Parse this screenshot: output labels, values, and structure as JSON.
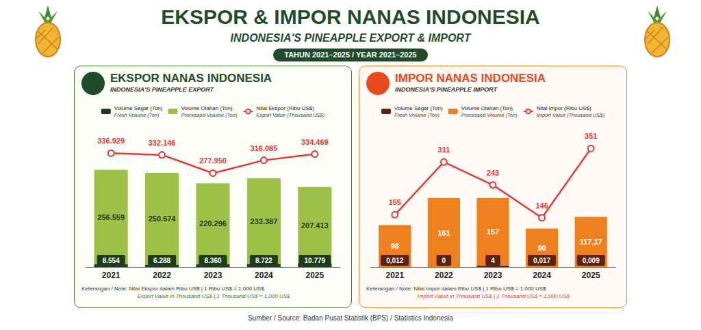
{
  "header": {
    "title": "EKSPOR & IMPOR NANAS INDONESIA",
    "subtitle": "INDONESIA'S PINEAPPLE EXPORT & IMPORT",
    "period": "TAHUN 2021–2025 / YEAR 2021–2025",
    "source": "Sumber / Source: Badan Pusat Statistik (BPS) / Statistics Indonesia"
  },
  "chart_data": [
    {
      "type": "bar",
      "title": "EKSPOR NANAS INDONESIA",
      "subtitle": "INDONESIA'S PINEAPPLE EXPORT",
      "categories": [
        "2021",
        "2022",
        "2023",
        "2024",
        "2025"
      ],
      "series": [
        {
          "name": "Volume Segar (Ton)",
          "name_en": "Fresh Volume (Ton)",
          "type": "bar",
          "color": "#1f3d1a",
          "values": [
            8554,
            6288,
            8360,
            8722,
            10779
          ],
          "value_labels": [
            "8.554",
            "6.288",
            "8.360",
            "8.722",
            "10.779"
          ]
        },
        {
          "name": "Volume Olahan (Ton)",
          "name_en": "Processed Volume (Ton)",
          "type": "bar",
          "color": "#9cc146",
          "values": [
            256559,
            250674,
            220296,
            233387,
            207413
          ],
          "value_labels": [
            "256.559",
            "250.674",
            "220.296",
            "233.387",
            "207.413"
          ]
        },
        {
          "name": "Nilai Ekspor (Ribu US$)",
          "name_en": "Export Value (Thousand US$)",
          "type": "line",
          "axis": "y2",
          "color": "#e53935",
          "marker": "circle",
          "values": [
            336929,
            332146,
            277950,
            316085,
            334469
          ],
          "value_labels": [
            "336.929",
            "332.146",
            "277.950",
            "316.085",
            "334.469"
          ]
        }
      ],
      "ylim": [
        0,
        350000
      ],
      "y2lim": [
        0,
        380000
      ],
      "stacked": true,
      "data_labels": true,
      "tick_labels": "x",
      "grid": false,
      "legend": "top",
      "notes": [
        "Keterangan / Note: Nilai Ekspor dalam Ribu US$ | 1 Ribu US$ = 1.000 US$",
        "Export Value in Thousand US$ | 1 Thousand US$ = 1,000 US$"
      ]
    },
    {
      "type": "bar",
      "title": "IMPOR NANAS INDONESIA",
      "subtitle": "INDONESIA'S PINEAPPLE IMPORT",
      "categories": [
        "2021",
        "2022",
        "2023",
        "2024",
        "2025"
      ],
      "series": [
        {
          "name": "Volume Segar (Ton)",
          "name_en": "Fresh Volume (Ton)",
          "type": "bar",
          "color": "#5a2312",
          "values": [
            0.012,
            0,
            4,
            0.017,
            0.009
          ],
          "value_labels": [
            "0,012",
            "0",
            "4",
            "0,017",
            "0,009"
          ]
        },
        {
          "name": "Volume Olahan (Ton)",
          "name_en": "Processed Volume (Ton)",
          "type": "bar",
          "color": "#f07f1e",
          "values": [
            98,
            161,
            157,
            90,
            117.17
          ],
          "value_labels": [
            "98",
            "161",
            "157",
            "90",
            "117,17"
          ]
        },
        {
          "name": "Nilai Impor (Ribu US$)",
          "name_en": "Import Value (Thousand US$)",
          "type": "line",
          "axis": "y2",
          "color": "#e53935",
          "marker": "circle",
          "values": [
            155,
            311,
            243,
            146,
            351
          ]
        }
      ],
      "ylim": [
        0,
        300
      ],
      "y2lim": [
        0,
        380
      ],
      "stacked": true,
      "data_labels": true,
      "tick_labels": "x",
      "grid": false,
      "legend": "top",
      "notes": [
        "Keterangan / Note: Nilai Impor dalam Ribu US$ | 1 Ribu US$ = 1.000 US$",
        "Import Value in Thousand US$ | 1 Thousand US$ = 1,000 US$"
      ]
    }
  ]
}
